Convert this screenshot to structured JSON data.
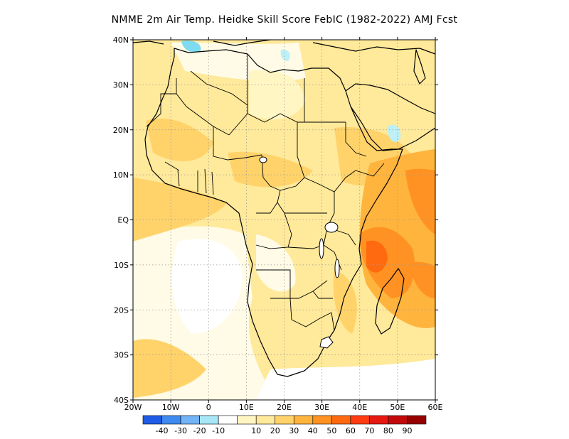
{
  "title": "NMME  2m Air Temp. Heidke Skill Score FebIC (1982-2022) AMJ Fcst",
  "map": {
    "lon_range": [
      -20,
      60
    ],
    "lat_range": [
      -40,
      40
    ],
    "lon_ticks": [
      {
        "value": -20,
        "label": "20W"
      },
      {
        "value": -10,
        "label": "10W"
      },
      {
        "value": 0,
        "label": "0"
      },
      {
        "value": 10,
        "label": "10E"
      },
      {
        "value": 20,
        "label": "20E"
      },
      {
        "value": 30,
        "label": "30E"
      },
      {
        "value": 40,
        "label": "40E"
      },
      {
        "value": 50,
        "label": "50E"
      },
      {
        "value": 60,
        "label": "60E"
      }
    ],
    "lat_ticks": [
      {
        "value": 40,
        "label": "40N"
      },
      {
        "value": 30,
        "label": "30N"
      },
      {
        "value": 20,
        "label": "20N"
      },
      {
        "value": 10,
        "label": "10N"
      },
      {
        "value": 0,
        "label": "EQ"
      },
      {
        "value": -10,
        "label": "10S"
      },
      {
        "value": -20,
        "label": "20S"
      },
      {
        "value": -30,
        "label": "30S"
      },
      {
        "value": -40,
        "label": "40S"
      }
    ],
    "gridlines": true,
    "colors": {
      "c10": "#fff6c4",
      "c20": "#ffe99a",
      "c30": "#ffd36a",
      "c40": "#ffb43d",
      "c50": "#ff9222",
      "c60": "#ff6a10",
      "cneg10": "#bdf0f7",
      "cneg20": "#7fdcf0"
    }
  },
  "colorbar": {
    "colors": [
      "#1e5ce6",
      "#3f8af0",
      "#72b4f5",
      "#a7e7f7",
      "#ffffff",
      "#fff6c4",
      "#ffe99a",
      "#ffd36a",
      "#ffb43d",
      "#ff9222",
      "#ff6a10",
      "#ff3b10",
      "#e61a10",
      "#c20a0a",
      "#960000"
    ],
    "labels": [
      "-40",
      "-30",
      "-20",
      "-10",
      "10",
      "20",
      "30",
      "40",
      "50",
      "60",
      "70",
      "80",
      "90"
    ]
  }
}
